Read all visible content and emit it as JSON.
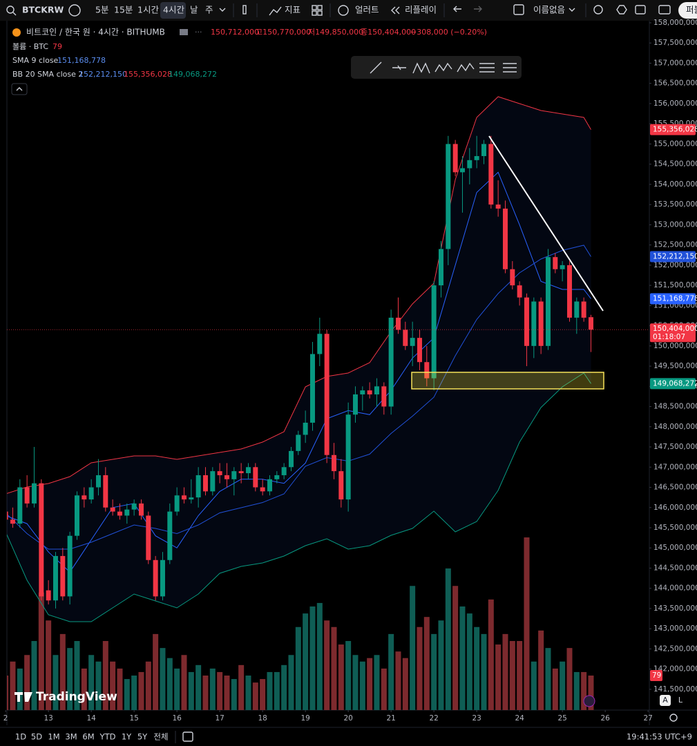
{
  "ui": {
    "symbol": "BTCKRW",
    "intervals": [
      "5분",
      "15분",
      "1시간",
      "4시간",
      "날",
      "주"
    ],
    "indicators_button": "지표",
    "alert_button": "얼러트",
    "replay_button": "리플레이",
    "layout_name": "이름없음",
    "publish_button": "퍼블",
    "ranges": [
      "1D",
      "5D",
      "1M",
      "3M",
      "6M",
      "YTD",
      "1Y",
      "5Y",
      "전체"
    ],
    "clock": "19:41:53 UTC+9",
    "watermark": "TradingView",
    "scale_buttons": [
      "A",
      "L"
    ]
  },
  "chart_data": {
    "type": "candlestick",
    "title": "비트코인 / 한국 원 · 4시간 · BITHUMB",
    "ohlc_legend": [
      "150,712,000",
      "고150,770,000",
      "저149,850,000",
      "종150,404,000",
      "−308,000 (−0.20%)"
    ],
    "close_label": "150,404,000",
    "countdown": "01:18:07",
    "up_color": "#089981",
    "down_color": "#f23645",
    "xlim": [
      12.03,
      27.03
    ],
    "ylim": [
      140985500,
      158051300
    ],
    "xticks": [
      {
        "value": 12,
        "label": "2"
      },
      13,
      14,
      15,
      16,
      17,
      18,
      19,
      20,
      21,
      22,
      23,
      24,
      25,
      26,
      27
    ],
    "yticks": [
      {
        "value": 158000000,
        "label": "158,000,000"
      },
      {
        "value": 157500000,
        "label": "157,500,000"
      },
      {
        "value": 157000000,
        "label": "157,000,000"
      },
      {
        "value": 156500000,
        "label": "156,500,000"
      },
      {
        "value": 156000000,
        "label": "156,000,000"
      },
      {
        "value": 155500000,
        "label": "155,500,000"
      },
      {
        "value": 155000000,
        "label": "155,000,000"
      },
      {
        "value": 154500000,
        "label": "154,500,000"
      },
      {
        "value": 154000000,
        "label": "154,000,000"
      },
      {
        "value": 153500000,
        "label": "153,500,000"
      },
      {
        "value": 153000000,
        "label": "153,000,000"
      },
      {
        "value": 152500000,
        "label": "152,500,000"
      },
      {
        "value": 152000000,
        "label": "152,000,000"
      },
      {
        "value": 151500000,
        "label": "151,500,000"
      },
      {
        "value": 151000000,
        "label": "151,000,000"
      },
      {
        "value": 150500000,
        "label": "150,500,000"
      },
      {
        "value": 150000000,
        "label": "150,000,000"
      },
      {
        "value": 149500000,
        "label": "149,500,000"
      },
      {
        "value": 149000000,
        "label": "149,000,000"
      },
      {
        "value": 148500000,
        "label": "148,500,000"
      },
      {
        "value": 148000000,
        "label": "148,000,000"
      },
      {
        "value": 147500000,
        "label": "147,500,000"
      },
      {
        "value": 147000000,
        "label": "147,000,000"
      },
      {
        "value": 146500000,
        "label": "146,500,000"
      },
      {
        "value": 146000000,
        "label": "146,000,000"
      },
      {
        "value": 145500000,
        "label": "145,500,000"
      },
      {
        "value": 145000000,
        "label": "145,000,000"
      },
      {
        "value": 144500000,
        "label": "144,500,000"
      },
      {
        "value": 144000000,
        "label": "144,000,000"
      },
      {
        "value": 143500000,
        "label": "143,500,000"
      },
      {
        "value": 143000000,
        "label": "143,000,000"
      },
      {
        "value": 142500000,
        "label": "142,500,000"
      },
      {
        "value": 142000000,
        "label": "142,000,000"
      },
      {
        "value": 141500000,
        "label": "141,500,000"
      }
    ],
    "x": [
      12,
      12.1667,
      12.3333,
      12.5,
      12.6667,
      12.8333,
      13,
      13.1667,
      13.3333,
      13.5,
      13.6667,
      13.8333,
      14,
      14.1667,
      14.3333,
      14.5,
      14.6667,
      14.8333,
      15,
      15.1667,
      15.3333,
      15.5,
      15.6667,
      15.8333,
      16,
      16.1667,
      16.3333,
      16.5,
      16.6667,
      16.8333,
      17,
      17.1667,
      17.3333,
      17.5,
      17.6667,
      17.8333,
      18,
      18.1667,
      18.3333,
      18.5,
      18.6667,
      18.8333,
      19,
      19.1667,
      19.3333,
      19.5,
      19.6667,
      19.8333,
      20,
      20.1667,
      20.3333,
      20.5,
      20.6667,
      20.8333,
      21,
      21.1667,
      21.3333,
      21.5,
      21.6667,
      21.8333,
      22,
      22.1667,
      22.3333,
      22.5,
      22.6667,
      22.8333,
      23,
      23.1667,
      23.3333,
      23.5,
      23.6667,
      23.8333,
      24,
      24.1667,
      24.3333,
      24.5,
      24.6667,
      24.8333,
      25,
      25.1667,
      25.3333,
      25.5,
      25.6667
    ],
    "open": [
      145900000,
      145700000,
      145600000,
      146500000,
      146100000,
      146600000,
      143950000,
      143700000,
      144800000,
      143800000,
      145300000,
      146300000,
      146200000,
      146500000,
      146800000,
      146000000,
      145900000,
      145800000,
      145950000,
      146100000,
      145800000,
      144700000,
      143800000,
      144700000,
      145900000,
      146300000,
      146200000,
      146250000,
      146800000,
      146400000,
      146900000,
      146800000,
      146700000,
      146900000,
      146850000,
      147000000,
      146500000,
      146400000,
      146700000,
      146800000,
      147000000,
      147400000,
      147800000,
      148100000,
      149800000,
      150300000,
      147300000,
      146900000,
      146200000,
      148300000,
      148800000,
      148900000,
      148800000,
      149000000,
      148500000,
      150700000,
      150400000,
      150000000,
      150200000,
      149600000,
      149200000,
      151500000,
      152400000,
      155000000,
      154300000,
      154400000,
      154600000,
      154700000,
      155000000,
      153500000,
      153400000,
      151900000,
      151500000,
      151200000,
      150000000,
      151100000,
      150000000,
      152200000,
      151900000,
      152000000,
      150700000,
      151100000,
      150712000
    ],
    "high": [
      146000000,
      146000000,
      146700000,
      146800000,
      147500000,
      146700000,
      144200000,
      144900000,
      145000000,
      145400000,
      146400000,
      146500000,
      146700000,
      147200000,
      147000000,
      146200000,
      146100000,
      146100000,
      146200000,
      146200000,
      145900000,
      144800000,
      144900000,
      146100000,
      146500000,
      146500000,
      146700000,
      147000000,
      147000000,
      147000000,
      147100000,
      147100000,
      147000000,
      147100000,
      147100000,
      147100000,
      146700000,
      146800000,
      146900000,
      147100000,
      147500000,
      147900000,
      148400000,
      150100000,
      150700000,
      150400000,
      147600000,
      147200000,
      148600000,
      149000000,
      149000000,
      149100000,
      149200000,
      149100000,
      150900000,
      151200000,
      150600000,
      150600000,
      150400000,
      150000000,
      151600000,
      152600000,
      155200000,
      155100000,
      154700000,
      154900000,
      155200000,
      155100000,
      155200000,
      154100000,
      153600000,
      152100000,
      151600000,
      151300000,
      151200000,
      151200000,
      152400000,
      152300000,
      152100000,
      152100000,
      151200000,
      151200000,
      150770000
    ],
    "low": [
      145600000,
      145500000,
      145500000,
      146000000,
      146000000,
      143700000,
      143600000,
      143500000,
      143700000,
      143600000,
      145200000,
      146000000,
      146100000,
      146300000,
      145900000,
      145800000,
      145700000,
      145600000,
      145800000,
      145700000,
      144600000,
      143700000,
      143700000,
      144600000,
      145800000,
      146100000,
      146100000,
      146000000,
      146300000,
      146300000,
      146600000,
      146500000,
      146300000,
      146600000,
      146700000,
      146400000,
      146300000,
      146300000,
      146600000,
      146700000,
      146900000,
      147300000,
      147600000,
      147900000,
      149500000,
      147100000,
      146700000,
      146000000,
      145900000,
      148100000,
      148400000,
      148700000,
      148500000,
      148300000,
      148300000,
      150300000,
      149900000,
      149500000,
      149400000,
      149000000,
      148900000,
      151200000,
      152000000,
      154200000,
      153300000,
      154000000,
      154400000,
      154500000,
      153400000,
      153200000,
      151800000,
      151400000,
      151000000,
      149500000,
      149700000,
      149800000,
      149900000,
      151800000,
      151600000,
      150600000,
      150300000,
      150600000,
      149850000
    ],
    "close": [
      145700000,
      145600000,
      146500000,
      146100000,
      146600000,
      143800000,
      143700000,
      144800000,
      143800000,
      145300000,
      146300000,
      146200000,
      146500000,
      146800000,
      146000000,
      145900000,
      145800000,
      145950000,
      146100000,
      145800000,
      144700000,
      143800000,
      144700000,
      145900000,
      146300000,
      146200000,
      146250000,
      146800000,
      146400000,
      146900000,
      146800000,
      146700000,
      146900000,
      146850000,
      147000000,
      146500000,
      146400000,
      146700000,
      146800000,
      147000000,
      147400000,
      147800000,
      148100000,
      149800000,
      150300000,
      147300000,
      146900000,
      146200000,
      148300000,
      148800000,
      148900000,
      148800000,
      149000000,
      148500000,
      150700000,
      150400000,
      150000000,
      150200000,
      149600000,
      149200000,
      151500000,
      152400000,
      155000000,
      154300000,
      154400000,
      154600000,
      154700000,
      155000000,
      153500000,
      153400000,
      151900000,
      151500000,
      151200000,
      150000000,
      151100000,
      150000000,
      152200000,
      151900000,
      152000000,
      150700000,
      151100000,
      150700000,
      150404000
    ],
    "volume": {
      "name": "볼륨 · BTC",
      "last_label": "79",
      "up_color": "#0f5e55",
      "down_color": "#7d2a2e",
      "ylim": [
        0,
        632
      ],
      "values": [
        79,
        111,
        95,
        126,
        158,
        269,
        205,
        126,
        174,
        142,
        158,
        95,
        126,
        111,
        158,
        111,
        95,
        71,
        79,
        87,
        111,
        174,
        142,
        119,
        95,
        126,
        87,
        103,
        79,
        95,
        87,
        79,
        71,
        103,
        79,
        63,
        71,
        87,
        87,
        103,
        126,
        190,
        221,
        237,
        245,
        205,
        190,
        150,
        158,
        126,
        111,
        119,
        126,
        95,
        174,
        134,
        119,
        284,
        190,
        213,
        174,
        205,
        324,
        284,
        237,
        221,
        190,
        174,
        253,
        150,
        174,
        158,
        158,
        395,
        111,
        182,
        142,
        95,
        111,
        142,
        87,
        87,
        79
      ]
    },
    "indicators": [
      {
        "name": "SMA 9 close",
        "series": [
          {
            "color": "#2962ff",
            "last_label": "151,168,778",
            "x": [
              12,
              12.5,
              13,
              13.5,
              14,
              14.5,
              15,
              15.5,
              16,
              16.5,
              17,
              17.5,
              18,
              18.5,
              19,
              19.5,
              20,
              20.5,
              21,
              21.5,
              22,
              22.5,
              23,
              23.5,
              24,
              24.5,
              25,
              25.5,
              25.6667
            ],
            "values": [
              145800000,
              145600000,
              144900000,
              144400000,
              145200000,
              146000000,
              146100000,
              145300000,
              145000000,
              145800000,
              146400000,
              146700000,
              146700000,
              146600000,
              147100000,
              148200000,
              148400000,
              148300000,
              148900000,
              149700000,
              150200000,
              152000000,
              153800000,
              154300000,
              153000000,
              151600000,
              151400000,
              151400000,
              151168778
            ]
          }
        ]
      },
      {
        "name": "BB 20 SMA close 2",
        "series": [
          {
            "color": "#2151d8",
            "last_label": "152,212,150",
            "x": [
              12,
              12.5,
              13,
              13.5,
              14,
              14.5,
              15,
              15.5,
              16,
              16.5,
              17,
              17.5,
              18,
              18.5,
              19,
              19.5,
              20,
              20.5,
              21,
              21.5,
              22,
              22.5,
              23,
              23.5,
              24,
              24.5,
              25,
              25.5,
              25.6667
            ],
            "values": [
              145868000,
              145355000,
              144970000,
              144970000,
              145141000,
              145355000,
              145568000,
              145483000,
              145355000,
              145568000,
              145868000,
              145996000,
              146124000,
              146338000,
              147022000,
              147236000,
              147150000,
              147321000,
              147834000,
              148262000,
              148732000,
              149758000,
              150656000,
              151297000,
              151810000,
              152152000,
              152366000,
              152494000,
              152212150
            ]
          },
          {
            "color": "#f23645",
            "last_label": "155,356,028",
            "x": [
              12,
              12.5,
              13,
              13.5,
              14,
              14.5,
              15,
              15.5,
              16,
              16.5,
              17,
              17.5,
              18,
              18.5,
              19,
              19.5,
              20,
              20.5,
              21,
              21.5,
              22,
              22.5,
              23,
              23.5,
              24,
              24.5,
              25,
              25.5,
              25.6667
            ],
            "values": [
              146338000,
              146509000,
              146594000,
              146765000,
              147107000,
              147193000,
              147278000,
              147278000,
              147193000,
              147278000,
              147364000,
              147449000,
              147620000,
              147877000,
              148988000,
              149245000,
              149330000,
              149587000,
              150356000,
              151040000,
              151553000,
              154118000,
              155657000,
              156170000,
              155999000,
              155828000,
              155743000,
              155657000,
              155356028
            ]
          },
          {
            "color": "#089981",
            "last_label": "149,068,272",
            "x": [
              12,
              12.5,
              13,
              13.5,
              14,
              14.5,
              15,
              15.5,
              16,
              16.5,
              17,
              17.5,
              18,
              18.5,
              19,
              19.5,
              20,
              20.5,
              21,
              21.5,
              22,
              22.5,
              23,
              23.5,
              24,
              24.5,
              25,
              25.5,
              25.6667
            ],
            "values": [
              145397000,
              144200000,
              143345000,
              143174000,
              143174000,
              143516000,
              143858000,
              143687000,
              143516000,
              143858000,
              144371000,
              144542000,
              144628000,
              144799000,
              145055000,
              145226000,
              144970000,
              145055000,
              145312000,
              145483000,
              145910000,
              145397000,
              145654000,
              146423000,
              147620000,
              148475000,
              148988000,
              149330000,
              149068272
            ]
          }
        ]
      }
    ]
  }
}
